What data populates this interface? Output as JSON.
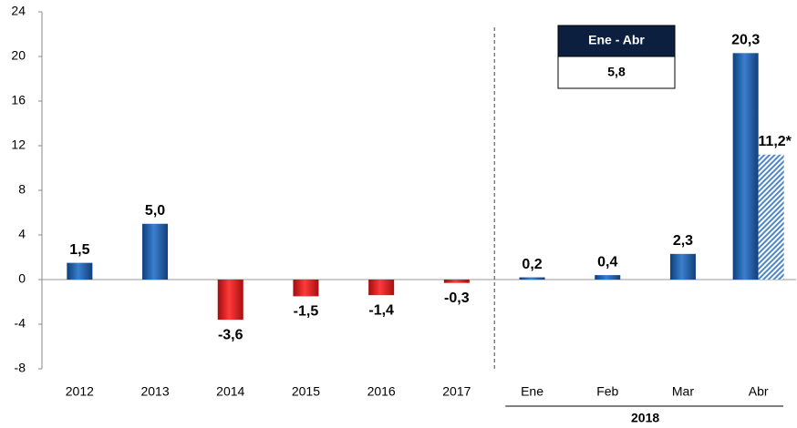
{
  "chart_data": {
    "type": "bar",
    "categories": [
      "2012",
      "2013",
      "2014",
      "2015",
      "2016",
      "2017",
      "Ene",
      "Feb",
      "Mar",
      "Abr"
    ],
    "series": [
      {
        "color": "#1f62ad",
        "negative_color": "#e01b1b",
        "values": [
          1.5,
          5.0,
          -3.6,
          -1.5,
          -1.4,
          -0.3,
          0.2,
          0.4,
          2.3,
          20.3
        ],
        "value_labels": [
          "1,5",
          "5,0",
          "-3,6",
          "-1,5",
          "-1,4",
          "-0,3",
          "0,2",
          "0,4",
          "2,3",
          "20,3"
        ]
      },
      {
        "color": "#4f86c6",
        "pattern": "hatch",
        "values": [
          null,
          null,
          null,
          null,
          null,
          null,
          null,
          null,
          null,
          11.2
        ],
        "value_labels": [
          null,
          null,
          null,
          null,
          null,
          null,
          null,
          null,
          null,
          "11,2*"
        ]
      }
    ],
    "category_groups": [
      {
        "label": "2018",
        "start": 6,
        "end": 9
      }
    ],
    "inset_box": {
      "header": "Ene - Abr",
      "value": 5.8,
      "value_label": "5,8"
    },
    "ylim": [
      -8,
      24
    ],
    "yticks": [
      -8,
      -4,
      0,
      4,
      8,
      12,
      16,
      20,
      24
    ]
  }
}
